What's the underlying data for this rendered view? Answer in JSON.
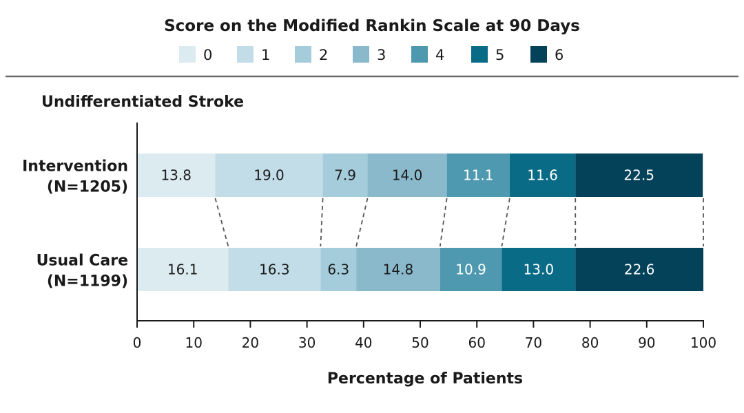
{
  "chart_data": {
    "type": "bar",
    "orientation": "horizontal",
    "stacked": true,
    "title": "Score on the Modified Rankin Scale at 90 Days",
    "panel_title": "Undifferentiated Stroke",
    "xlabel": "Percentage of Patients",
    "xlim": [
      0,
      100
    ],
    "xticks": [
      0,
      10,
      20,
      30,
      40,
      50,
      60,
      70,
      80,
      90,
      100
    ],
    "legend_position": "top",
    "categories": [
      {
        "line1": "Intervention",
        "line2": "(N=1205)"
      },
      {
        "line1": "Usual Care",
        "line2": "(N=1199)"
      }
    ],
    "series": [
      {
        "name": "0",
        "color": "#dcebf0",
        "text_color": "#1a1a1a",
        "values": [
          13.8,
          16.1
        ]
      },
      {
        "name": "1",
        "color": "#c2dde7",
        "text_color": "#1a1a1a",
        "values": [
          19.0,
          16.3
        ]
      },
      {
        "name": "2",
        "color": "#a5ccdb",
        "text_color": "#1a1a1a",
        "values": [
          7.9,
          6.3
        ]
      },
      {
        "name": "3",
        "color": "#8ab9cb",
        "text_color": "#1a1a1a",
        "values": [
          14.0,
          14.8
        ]
      },
      {
        "name": "4",
        "color": "#4f99b0",
        "text_color": "#ffffff",
        "values": [
          11.1,
          10.9
        ]
      },
      {
        "name": "5",
        "color": "#0a6b86",
        "text_color": "#ffffff",
        "values": [
          11.6,
          13.0
        ]
      },
      {
        "name": "6",
        "color": "#04425a",
        "text_color": "#ffffff",
        "values": [
          22.5,
          22.6
        ]
      }
    ],
    "connectors": "dashed",
    "grid": false
  }
}
